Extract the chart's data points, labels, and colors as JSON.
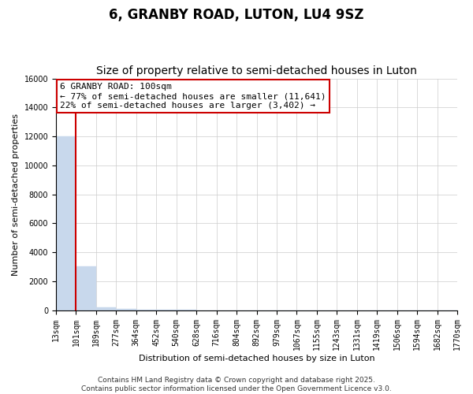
{
  "title": "6, GRANBY ROAD, LUTON, LU4 9SZ",
  "subtitle": "Size of property relative to semi-detached houses in Luton",
  "xlabel": "Distribution of semi-detached houses by size in Luton",
  "ylabel": "Number of semi-detached properties",
  "footnote": "Contains HM Land Registry data © Crown copyright and database right 2025.\nContains public sector information licensed under the Open Government Licence v3.0.",
  "annotation_title": "6 GRANBY ROAD: 100sqm",
  "annotation_line1": "← 77% of semi-detached houses are smaller (11,641)",
  "annotation_line2": "22% of semi-detached houses are larger (3,402) →",
  "bins": [
    "13sqm",
    "101sqm",
    "189sqm",
    "277sqm",
    "364sqm",
    "452sqm",
    "540sqm",
    "628sqm",
    "716sqm",
    "804sqm",
    "892sqm",
    "979sqm",
    "1067sqm",
    "1155sqm",
    "1243sqm",
    "1331sqm",
    "1419sqm",
    "1506sqm",
    "1594sqm",
    "1682sqm",
    "1770sqm"
  ],
  "bar_values": [
    12000,
    3000,
    200,
    80,
    30,
    15,
    8,
    5,
    4,
    3,
    2,
    2,
    2,
    1,
    1,
    1,
    1,
    1,
    0,
    0
  ],
  "bar_color": "#c8d8ec",
  "red_line_x": 1,
  "annotation_box_edge": "#cc0000",
  "annotation_box_face": "#ffffff",
  "ylim": [
    0,
    16000
  ],
  "yticks": [
    0,
    2000,
    4000,
    6000,
    8000,
    10000,
    12000,
    14000,
    16000
  ],
  "grid_color": "#cccccc",
  "title_fontsize": 12,
  "subtitle_fontsize": 10,
  "axis_label_fontsize": 8,
  "tick_fontsize": 7,
  "annotation_fontsize": 8,
  "footnote_fontsize": 6.5,
  "figsize": [
    6.0,
    5.0
  ],
  "dpi": 100
}
